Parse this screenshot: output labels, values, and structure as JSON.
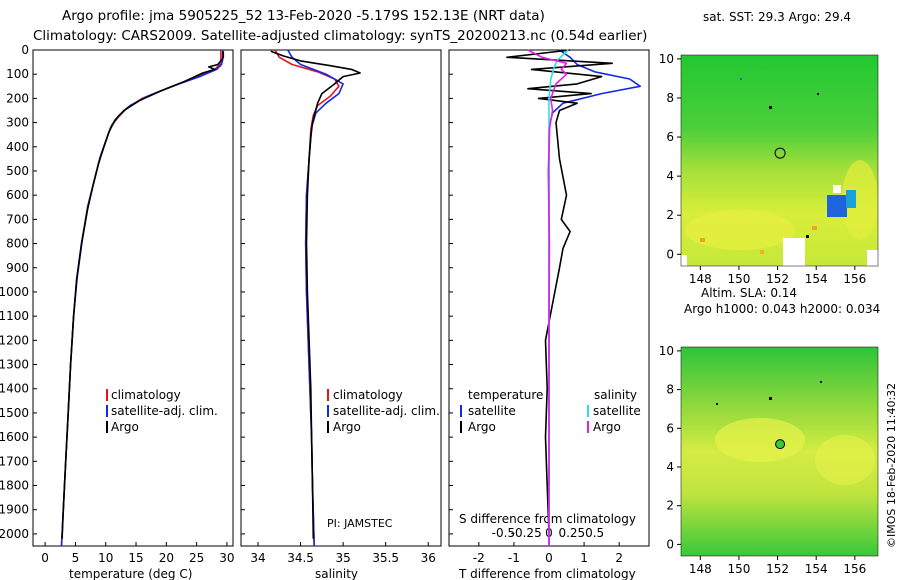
{
  "header": {
    "title_line1": "Argo profile: jma 5905225_52 13-Feb-2020 -5.179S 152.13E (NRT data)",
    "title_line2": "Climatology: CARS2009. Satellite-adjusted climatology: synTS_20200213.nc (0.54d earlier)"
  },
  "colors": {
    "climatology": "#e8141c",
    "satellite": "#1428e6",
    "argo": "#000000",
    "sat_salinity": "#2ee0e6",
    "argo_salinity": "#e61ee6"
  },
  "depth_axis": {
    "ticks": [
      0,
      100,
      200,
      300,
      400,
      500,
      600,
      700,
      800,
      900,
      1000,
      1100,
      1200,
      1300,
      1400,
      1500,
      1600,
      1700,
      1800,
      1900,
      2000
    ],
    "range": [
      0,
      2050
    ]
  },
  "chart_data": [
    {
      "type": "line",
      "id": "temperature",
      "xlabel": "temperature (deg C)",
      "xlim": [
        -2,
        31
      ],
      "xticks": [
        0,
        5,
        10,
        15,
        20,
        25,
        30
      ],
      "ylim": [
        2050,
        0
      ],
      "legend": [
        "climatology",
        "satellite-adj. clim.",
        "Argo"
      ],
      "legend_position": "lower-right",
      "series": [
        {
          "name": "climatology",
          "color_key": "climatology",
          "points": [
            [
              29.0,
              0
            ],
            [
              29.0,
              40
            ],
            [
              28.8,
              60
            ],
            [
              28.0,
              80
            ],
            [
              25.0,
              110
            ],
            [
              20.0,
              160
            ],
            [
              16.0,
              200
            ],
            [
              13.5,
              240
            ],
            [
              12.0,
              280
            ],
            [
              10.8,
              320
            ],
            [
              10.0,
              380
            ],
            [
              9.0,
              450
            ],
            [
              8.0,
              550
            ],
            [
              7.0,
              650
            ],
            [
              6.0,
              800
            ],
            [
              5.2,
              950
            ],
            [
              4.7,
              1100
            ],
            [
              4.2,
              1300
            ],
            [
              3.8,
              1500
            ],
            [
              3.4,
              1700
            ],
            [
              3.0,
              1900
            ],
            [
              2.7,
              2050
            ]
          ]
        },
        {
          "name": "satellite",
          "color_key": "satellite",
          "points": [
            [
              29.3,
              0
            ],
            [
              29.3,
              40
            ],
            [
              29.1,
              60
            ],
            [
              28.3,
              80
            ],
            [
              25.5,
              110
            ],
            [
              21.0,
              150
            ],
            [
              17.0,
              190
            ],
            [
              14.0,
              230
            ],
            [
              12.2,
              270
            ],
            [
              11.0,
              310
            ],
            [
              10.1,
              370
            ],
            [
              9.1,
              440
            ],
            [
              8.1,
              540
            ],
            [
              7.1,
              640
            ],
            [
              6.1,
              790
            ],
            [
              5.3,
              940
            ],
            [
              4.7,
              1100
            ],
            [
              4.2,
              1300
            ],
            [
              3.8,
              1500
            ],
            [
              3.4,
              1700
            ],
            [
              3.0,
              1900
            ],
            [
              2.7,
              2050
            ]
          ]
        },
        {
          "name": "Argo",
          "color_key": "argo",
          "points": [
            [
              29.4,
              5
            ],
            [
              29.4,
              30
            ],
            [
              29.0,
              45
            ],
            [
              28.5,
              60
            ],
            [
              27.0,
              70
            ],
            [
              28.0,
              80
            ],
            [
              26.0,
              95
            ],
            [
              23.0,
              130
            ],
            [
              19.0,
              170
            ],
            [
              15.5,
              210
            ],
            [
              13.0,
              250
            ],
            [
              11.5,
              290
            ],
            [
              10.5,
              340
            ],
            [
              9.7,
              400
            ],
            [
              8.8,
              470
            ],
            [
              7.9,
              560
            ],
            [
              7.0,
              660
            ],
            [
              6.0,
              800
            ],
            [
              5.2,
              950
            ],
            [
              4.7,
              1100
            ],
            [
              4.2,
              1300
            ],
            [
              3.8,
              1500
            ],
            [
              3.4,
              1700
            ],
            [
              3.0,
              1900
            ],
            [
              2.8,
              2020
            ]
          ]
        }
      ]
    },
    {
      "type": "line",
      "id": "salinity",
      "xlabel": "salinity",
      "xlim": [
        33.8,
        36.15
      ],
      "xticks": [
        34,
        34.5,
        35,
        35.5,
        36
      ],
      "ylim": [
        2050,
        0
      ],
      "legend": [
        "climatology",
        "satellite-adj. clim.",
        "Argo"
      ],
      "legend_position": "lower-right",
      "annotation": "PI: JAMSTEC",
      "series": [
        {
          "name": "climatology",
          "color_key": "climatology",
          "points": [
            [
              34.2,
              0
            ],
            [
              34.25,
              30
            ],
            [
              34.4,
              60
            ],
            [
              34.7,
              90
            ],
            [
              34.9,
              120
            ],
            [
              34.95,
              150
            ],
            [
              34.85,
              190
            ],
            [
              34.7,
              230
            ],
            [
              34.65,
              270
            ],
            [
              34.62,
              330
            ],
            [
              34.6,
              450
            ],
            [
              34.57,
              600
            ],
            [
              34.56,
              800
            ],
            [
              34.57,
              1000
            ],
            [
              34.59,
              1200
            ],
            [
              34.61,
              1400
            ],
            [
              34.63,
              1600
            ],
            [
              34.64,
              1800
            ],
            [
              34.66,
              2050
            ]
          ]
        },
        {
          "name": "satellite",
          "color_key": "satellite",
          "points": [
            [
              34.35,
              0
            ],
            [
              34.4,
              30
            ],
            [
              34.5,
              60
            ],
            [
              34.8,
              100
            ],
            [
              35.0,
              140
            ],
            [
              34.95,
              180
            ],
            [
              34.8,
              220
            ],
            [
              34.68,
              260
            ],
            [
              34.63,
              320
            ],
            [
              34.6,
              450
            ],
            [
              34.57,
              600
            ],
            [
              34.56,
              800
            ],
            [
              34.57,
              1000
            ],
            [
              34.59,
              1200
            ],
            [
              34.61,
              1400
            ],
            [
              34.63,
              1600
            ],
            [
              34.64,
              1800
            ],
            [
              34.66,
              2050
            ]
          ]
        },
        {
          "name": "Argo",
          "color_key": "argo",
          "points": [
            [
              34.15,
              5
            ],
            [
              34.3,
              25
            ],
            [
              34.5,
              45
            ],
            [
              34.85,
              65
            ],
            [
              35.1,
              80
            ],
            [
              35.2,
              95
            ],
            [
              35.0,
              110
            ],
            [
              34.9,
              140
            ],
            [
              34.75,
              180
            ],
            [
              34.7,
              220
            ],
            [
              34.67,
              260
            ],
            [
              34.64,
              300
            ],
            [
              34.62,
              360
            ],
            [
              34.6,
              450
            ],
            [
              34.58,
              600
            ],
            [
              34.57,
              800
            ],
            [
              34.58,
              1000
            ],
            [
              34.6,
              1200
            ],
            [
              34.62,
              1400
            ],
            [
              34.63,
              1600
            ],
            [
              34.64,
              1800
            ],
            [
              34.65,
              2020
            ]
          ]
        }
      ]
    },
    {
      "type": "line",
      "id": "difference",
      "xlabel": "T difference from climatology",
      "xlabel_top": "S difference from climatology",
      "xlim": [
        -2.85,
        2.85
      ],
      "xticks": [
        -2,
        -1,
        0,
        1,
        2
      ],
      "xticks_top_labels": [
        "-0.5",
        "-0.25",
        "0",
        "0.25",
        "0.5"
      ],
      "ylim": [
        2050,
        0
      ],
      "legend": {
        "temperature": [
          "satellite",
          "Argo"
        ],
        "salinity": [
          "satellite",
          "Argo"
        ]
      },
      "legend_headers": {
        "temperature": "temperature",
        "salinity": "salinity"
      },
      "legend_position": "lower-center",
      "series": [
        {
          "name": "T satellite",
          "color_key": "satellite",
          "points": [
            [
              0.3,
              0
            ],
            [
              0.6,
              30
            ],
            [
              0.8,
              60
            ],
            [
              1.3,
              90
            ],
            [
              2.3,
              120
            ],
            [
              2.6,
              150
            ],
            [
              1.5,
              180
            ],
            [
              0.4,
              220
            ],
            [
              0.1,
              260
            ],
            [
              0.0,
              320
            ],
            [
              0.0,
              500
            ],
            [
              0.0,
              1000
            ],
            [
              0.0,
              1500
            ],
            [
              0.0,
              2050
            ]
          ]
        },
        {
          "name": "T Argo",
          "color_key": "argo",
          "points": [
            [
              0.6,
              0
            ],
            [
              -1.2,
              30
            ],
            [
              1.8,
              55
            ],
            [
              -0.5,
              80
            ],
            [
              1.5,
              110
            ],
            [
              0.8,
              140
            ],
            [
              -0.6,
              160
            ],
            [
              1.2,
              180
            ],
            [
              -0.3,
              200
            ],
            [
              0.8,
              220
            ],
            [
              0.3,
              250
            ],
            [
              0.2,
              300
            ],
            [
              0.3,
              450
            ],
            [
              0.5,
              600
            ],
            [
              0.35,
              700
            ],
            [
              0.6,
              750
            ],
            [
              0.4,
              820
            ],
            [
              0.3,
              900
            ],
            [
              0.1,
              1050
            ],
            [
              -0.1,
              1200
            ],
            [
              -0.05,
              1400
            ],
            [
              -0.1,
              1600
            ],
            [
              -0.05,
              1800
            ],
            [
              0.0,
              2000
            ]
          ]
        },
        {
          "name": "S satellite",
          "color_key": "sat_salinity",
          "points": [
            [
              0.55,
              0
            ],
            [
              0.25,
              40
            ],
            [
              0.15,
              70
            ],
            [
              0.05,
              120
            ],
            [
              0.0,
              200
            ],
            [
              0.0,
              400
            ],
            [
              0.0,
              1000
            ],
            [
              0.0,
              2050
            ]
          ]
        },
        {
          "name": "S Argo",
          "color_key": "argo_salinity",
          "points": [
            [
              -0.6,
              0
            ],
            [
              -0.2,
              30
            ],
            [
              0.5,
              55
            ],
            [
              0.35,
              80
            ],
            [
              0.5,
              100
            ],
            [
              0.2,
              140
            ],
            [
              0.05,
              200
            ],
            [
              0.1,
              250
            ],
            [
              0.02,
              320
            ],
            [
              -0.02,
              500
            ],
            [
              0.01,
              800
            ],
            [
              0.0,
              1200
            ],
            [
              0.0,
              1600
            ],
            [
              0.0,
              2050
            ]
          ]
        }
      ]
    }
  ],
  "maps": [
    {
      "title": "sat. SST: 29.3 Argo: 29.4",
      "xticks": [
        "148",
        "150",
        "152",
        "154",
        "156"
      ],
      "yticks": [
        "0",
        "2",
        "4",
        "6",
        "8",
        "10"
      ],
      "xlim": [
        147,
        157.2
      ],
      "ylim": [
        -0.6,
        10.2
      ],
      "marker": {
        "lon": 152.13,
        "lat": 5.18
      }
    },
    {
      "title_line1": "Altim. SLA: 0.14",
      "title_line2": "Argo h1000: 0.043 h2000: 0.034",
      "xticks": [
        "148",
        "150",
        "152",
        "154",
        "156"
      ],
      "yticks": [
        "0",
        "2",
        "4",
        "6",
        "8",
        "10"
      ],
      "xlim": [
        147,
        157.2
      ],
      "ylim": [
        -0.6,
        10.2
      ],
      "marker": {
        "lon": 152.13,
        "lat": 5.18
      }
    }
  ],
  "footer": {
    "stamp": "©IMOS 18-Feb-2020 11:40:32"
  }
}
